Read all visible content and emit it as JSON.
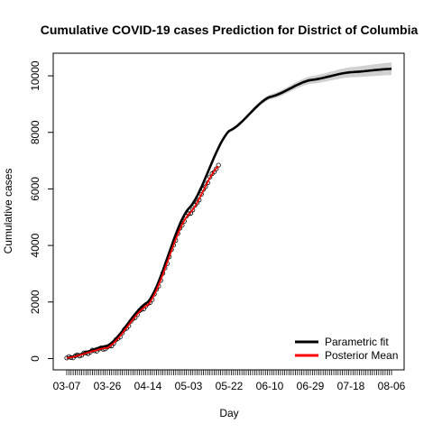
{
  "chart_data": {
    "type": "line",
    "title": "Cumulative COVID-19 cases Prediction for District of Columbia",
    "xlabel": "Day",
    "ylabel": "Cumulative cases",
    "x_tick_labels": [
      "03-07",
      "03-26",
      "04-14",
      "05-03",
      "05-22",
      "06-10",
      "06-29",
      "07-18",
      "08-06"
    ],
    "y_tick_labels": [
      "0",
      "2000",
      "4000",
      "6000",
      "8000",
      "10000"
    ],
    "x_start": "2020-03-07",
    "x_end": "2020-08-06",
    "observed_end": "2020-05-17",
    "ylim": [
      -400,
      10800
    ],
    "grid": false,
    "legend_position": "bottom-right",
    "colors": {
      "parametric_fit": "#000000",
      "posterior_mean": "#ff0000",
      "credible_band": "#d0d0d0",
      "observed_points": "#000000"
    },
    "series": [
      {
        "name": "Parametric fit",
        "x": [
          "2020-03-07",
          "2020-03-26",
          "2020-04-14",
          "2020-05-03",
          "2020-05-22",
          "2020-06-10",
          "2020-06-29",
          "2020-07-18",
          "2020-08-06"
        ],
        "values": [
          20,
          450,
          2000,
          5300,
          8050,
          9250,
          9850,
          10130,
          10250
        ]
      },
      {
        "name": "Posterior Mean",
        "x": [
          "2020-03-07",
          "2020-03-26",
          "2020-04-14",
          "2020-05-03",
          "2020-05-17"
        ],
        "values": [
          20,
          380,
          1900,
          5100,
          6800
        ]
      }
    ]
  }
}
